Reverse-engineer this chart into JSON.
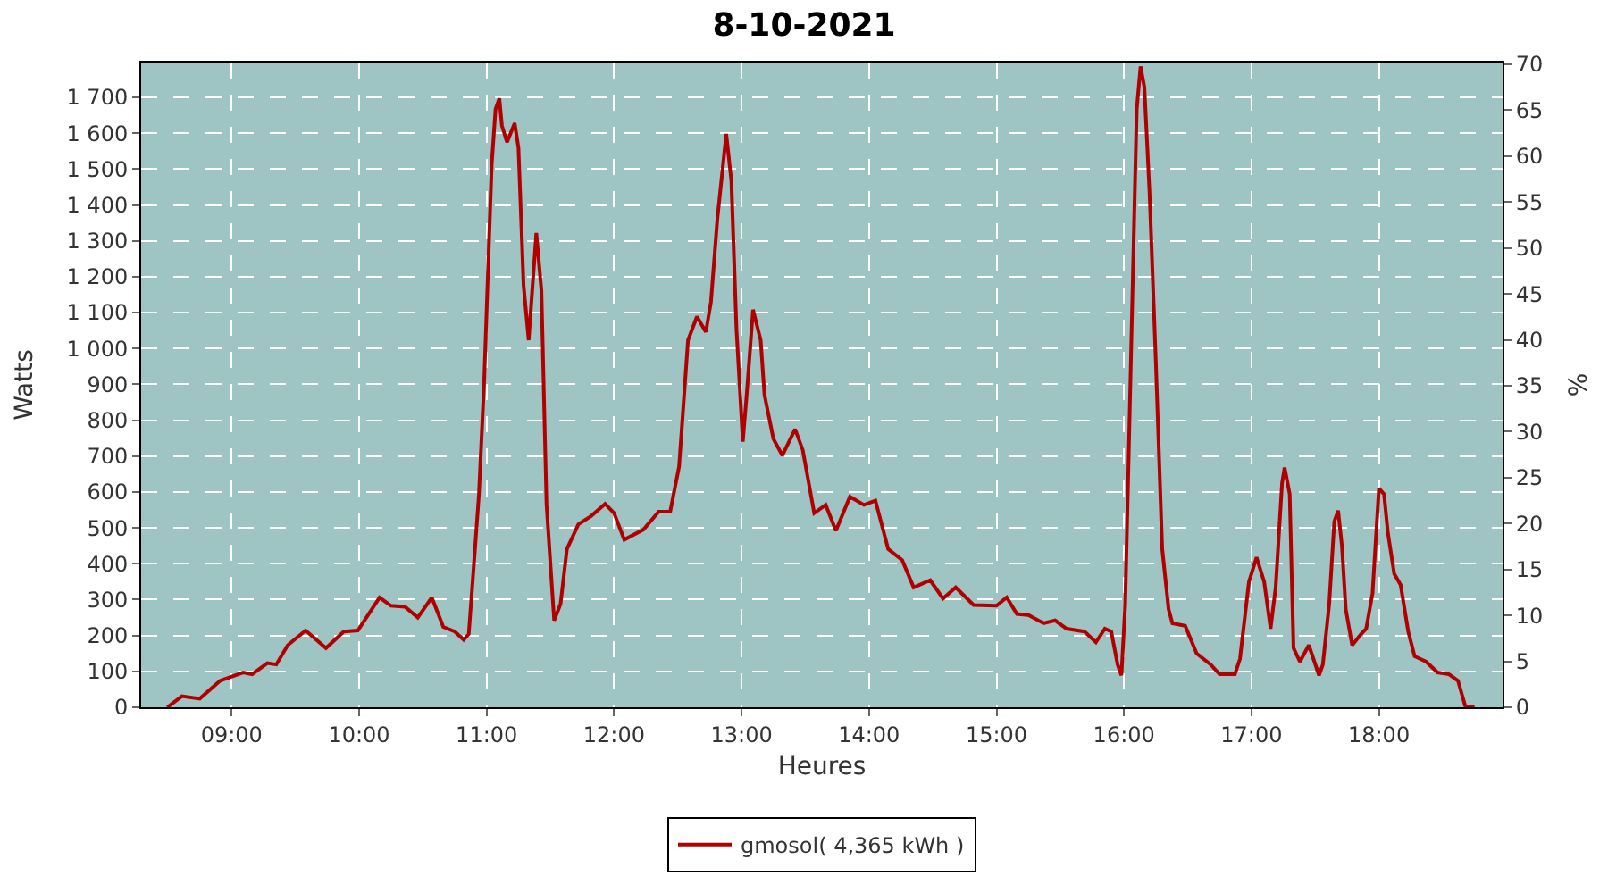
{
  "chart_data": {
    "type": "line",
    "title": "8-10-2021",
    "xlabel": "Heures",
    "ylabel": "Watts",
    "y2label": "%",
    "x": [
      8.495,
      8.61,
      8.75,
      8.91,
      9.09,
      9.16,
      9.28,
      9.35,
      9.44,
      9.58,
      9.74,
      9.88,
      9.99,
      10.16,
      10.25,
      10.36,
      10.46,
      10.57,
      10.66,
      10.75,
      10.82,
      10.86,
      10.89,
      10.94,
      10.98,
      11.01,
      11.04,
      11.07,
      11.1,
      11.12,
      11.16,
      11.22,
      11.25,
      11.29,
      11.33,
      11.39,
      11.43,
      11.47,
      11.53,
      11.58,
      11.63,
      11.72,
      11.82,
      11.93,
      12.0,
      12.08,
      12.23,
      12.35,
      12.44,
      12.51,
      12.58,
      12.65,
      12.72,
      12.76,
      12.81,
      12.88,
      12.92,
      12.96,
      13.01,
      13.04,
      13.09,
      13.15,
      13.18,
      13.25,
      13.32,
      13.42,
      13.48,
      13.57,
      13.66,
      13.74,
      13.85,
      13.96,
      14.05,
      14.15,
      14.26,
      14.35,
      14.48,
      14.58,
      14.68,
      14.82,
      15.0,
      15.08,
      15.16,
      15.25,
      15.37,
      15.46,
      15.55,
      15.69,
      15.78,
      15.85,
      15.9,
      15.95,
      15.98,
      16.01,
      16.04,
      16.07,
      16.1,
      16.13,
      16.16,
      16.2,
      16.25,
      16.3,
      16.35,
      16.38,
      16.48,
      16.57,
      16.68,
      16.75,
      16.87,
      16.91,
      16.98,
      17.04,
      17.1,
      17.15,
      17.19,
      17.24,
      17.26,
      17.3,
      17.33,
      17.38,
      17.45,
      17.53,
      17.56,
      17.61,
      17.65,
      17.68,
      17.71,
      17.74,
      17.79,
      17.86,
      17.9,
      17.95,
      18.0,
      18.04,
      18.07,
      18.12,
      18.17,
      18.23,
      18.28,
      18.37,
      18.46,
      18.55,
      18.62,
      18.68,
      18.75
    ],
    "series": [
      {
        "name": "gmosol( 4,365 kWh )",
        "color": "#b00000",
        "values": [
          0,
          31,
          24,
          74,
          97,
          92,
          123,
          119,
          173,
          214,
          165,
          211,
          214,
          306,
          283,
          280,
          250,
          306,
          224,
          211,
          188,
          204,
          349,
          594,
          901,
          1207,
          1513,
          1667,
          1697,
          1621,
          1575,
          1628,
          1559,
          1176,
          1023,
          1322,
          1161,
          564,
          242,
          288,
          441,
          510,
          533,
          567,
          541,
          467,
          495,
          545,
          545,
          671,
          1023,
          1089,
          1046,
          1130,
          1360,
          1598,
          1467,
          1054,
          740,
          870,
          1108,
          1023,
          870,
          748,
          702,
          775,
          717,
          541,
          564,
          492,
          587,
          564,
          576,
          441,
          410,
          334,
          354,
          303,
          334,
          285,
          283,
          306,
          260,
          257,
          234,
          242,
          219,
          211,
          181,
          219,
          211,
          119,
          89,
          288,
          748,
          1207,
          1667,
          1786,
          1728,
          1437,
          962,
          441,
          273,
          234,
          227,
          150,
          119,
          92,
          92,
          135,
          349,
          418,
          349,
          219,
          334,
          625,
          668,
          594,
          165,
          127,
          173,
          89,
          119,
          288,
          518,
          548,
          449,
          273,
          173,
          204,
          219,
          318,
          610,
          594,
          487,
          372,
          341,
          211,
          142,
          127,
          97,
          92,
          74,
          0,
          0
        ]
      }
    ],
    "xlim": [
      8.29,
      18.97
    ],
    "xticks": [
      {
        "value": 9,
        "label": "09:00"
      },
      {
        "value": 10,
        "label": "10:00"
      },
      {
        "value": 11,
        "label": "11:00"
      },
      {
        "value": 12,
        "label": "12:00"
      },
      {
        "value": 13,
        "label": "13:00"
      },
      {
        "value": 14,
        "label": "14:00"
      },
      {
        "value": 15,
        "label": "15:00"
      },
      {
        "value": 16,
        "label": "16:00"
      },
      {
        "value": 17,
        "label": "17:00"
      },
      {
        "value": 18,
        "label": "18:00"
      }
    ],
    "ylim": [
      0,
      1797
    ],
    "yticks": [
      {
        "value": 0,
        "label": "0"
      },
      {
        "value": 100,
        "label": "100"
      },
      {
        "value": 200,
        "label": "200"
      },
      {
        "value": 300,
        "label": "300"
      },
      {
        "value": 400,
        "label": "400"
      },
      {
        "value": 500,
        "label": "500"
      },
      {
        "value": 600,
        "label": "600"
      },
      {
        "value": 700,
        "label": "700"
      },
      {
        "value": 800,
        "label": "800"
      },
      {
        "value": 900,
        "label": "900"
      },
      {
        "value": 1000,
        "label": "1 000"
      },
      {
        "value": 1100,
        "label": "1 100"
      },
      {
        "value": 1200,
        "label": "1 200"
      },
      {
        "value": 1300,
        "label": "1 300"
      },
      {
        "value": 1400,
        "label": "1 400"
      },
      {
        "value": 1500,
        "label": "1 500"
      },
      {
        "value": 1600,
        "label": "1 600"
      },
      {
        "value": 1700,
        "label": "1 700"
      }
    ],
    "y2lim": [
      0,
      70.2
    ],
    "y2ticks": [
      0,
      5,
      10,
      15,
      20,
      25,
      30,
      35,
      40,
      45,
      50,
      55,
      60,
      65,
      70
    ],
    "grid": true,
    "legend": "bottom",
    "marker": "none",
    "line_style": "solid"
  }
}
